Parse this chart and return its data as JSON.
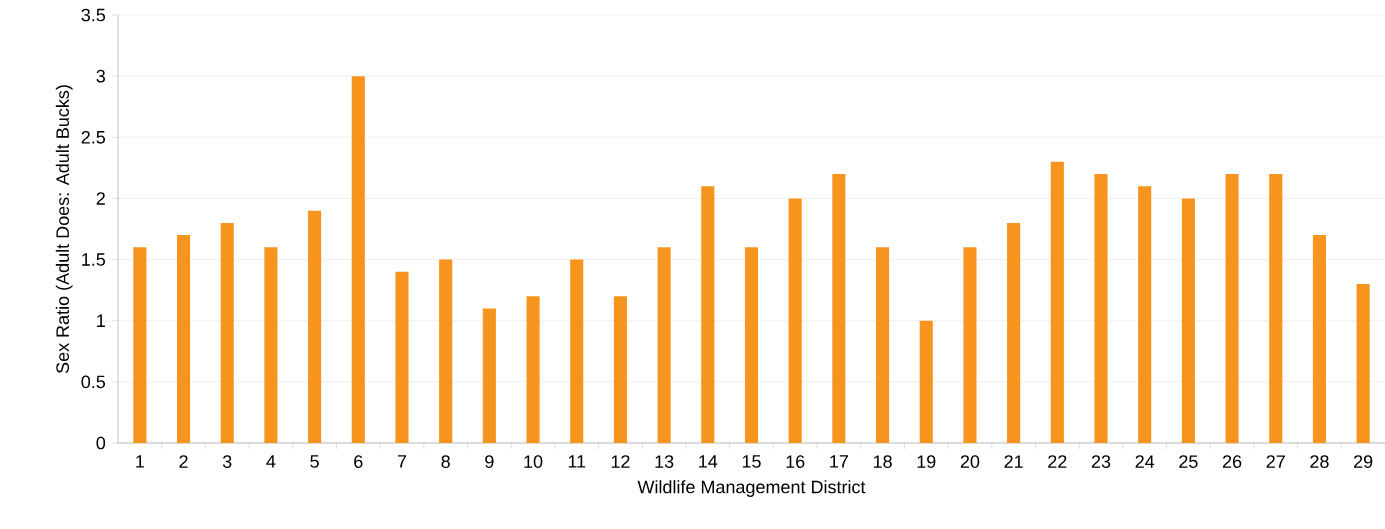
{
  "chart_data": {
    "type": "bar",
    "xlabel": "Wildlife Management District",
    "ylabel": "Sex Ratio (Adult Does: Adult Bucks)",
    "categories": [
      "1",
      "2",
      "3",
      "4",
      "5",
      "6",
      "7",
      "8",
      "9",
      "10",
      "11",
      "12",
      "13",
      "14",
      "15",
      "16",
      "17",
      "18",
      "19",
      "20",
      "21",
      "22",
      "23",
      "24",
      "25",
      "26",
      "27",
      "28",
      "29"
    ],
    "values": [
      1.6,
      1.7,
      1.8,
      1.6,
      1.9,
      3.0,
      1.4,
      1.5,
      1.1,
      1.2,
      1.5,
      1.2,
      1.6,
      2.1,
      1.6,
      2.0,
      2.2,
      1.6,
      1.0,
      1.6,
      1.8,
      2.3,
      2.2,
      2.1,
      2.0,
      2.2,
      2.2,
      1.7,
      1.3
    ],
    "color": "#f7941d",
    "ylim": [
      0,
      3.5
    ],
    "yticks": [
      0,
      0.5,
      1,
      1.5,
      2,
      2.5,
      3,
      3.5
    ],
    "grid": "y"
  }
}
